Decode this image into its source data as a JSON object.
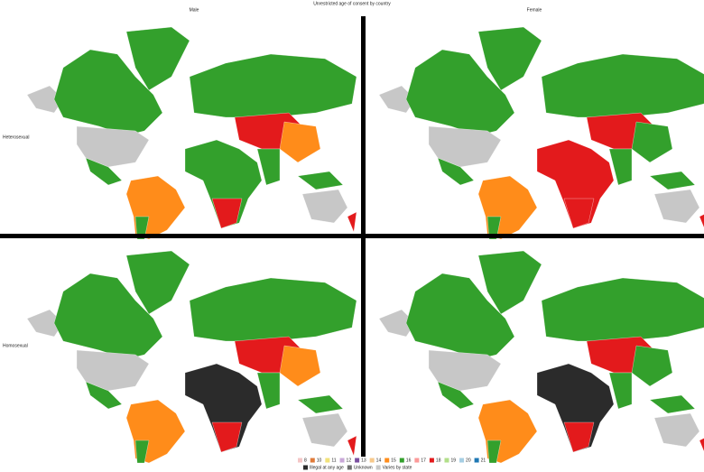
{
  "title": "Unrestricted age of consent by country",
  "columns": [
    "Male",
    "Female"
  ],
  "rows": [
    "Heterosexual",
    "Homosexual"
  ],
  "legend": [
    {
      "label": "8",
      "color": "#f4c6c6"
    },
    {
      "label": "10",
      "color": "#e07b39"
    },
    {
      "label": "11",
      "color": "#f2e27a"
    },
    {
      "label": "12",
      "color": "#c9a8d8"
    },
    {
      "label": "13",
      "color": "#7b4fa0"
    },
    {
      "label": "14",
      "color": "#f7c98b"
    },
    {
      "label": "15",
      "color": "#ff8c1a"
    },
    {
      "label": "16",
      "color": "#33a02c"
    },
    {
      "label": "17",
      "color": "#fb9a99"
    },
    {
      "label": "18",
      "color": "#e31a1c"
    },
    {
      "label": "19",
      "color": "#b2df8a"
    },
    {
      "label": "20",
      "color": "#a6cee3"
    },
    {
      "label": "21",
      "color": "#1f78b4"
    },
    {
      "label": "Illegal at any age",
      "color": "#2b2b2b"
    },
    {
      "label": "Unknown",
      "color": "#6e6e6e"
    },
    {
      "label": "Varies by state",
      "color": "#c7c7c7"
    }
  ]
}
